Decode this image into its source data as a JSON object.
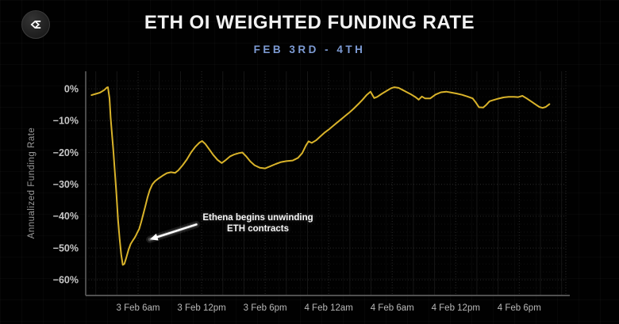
{
  "header": {
    "logo_icon": "sigma-logo-icon",
    "title": "ETH OI WEIGHTED FUNDING RATE",
    "subtitle": "FEB 3RD - 4TH"
  },
  "colors": {
    "background": "#010101",
    "title_text": "#f2f2f2",
    "subtitle_text": "#7d9bd4",
    "line": "#d9b32a",
    "axis": "#5c5c5c",
    "grid_major": "#2d2d2d",
    "grid_minor_v": "#161616",
    "grid_minor_h": "#111111",
    "y_tick_text": "#c6c6c6",
    "x_tick_text": "#b8b8b8",
    "axis_title_text": "#9b9b9b",
    "annotation_text": "#f5f5f5",
    "annotation_arrow": "#ffffff"
  },
  "chart_data": {
    "type": "line",
    "title": "ETH OI WEIGHTED FUNDING RATE",
    "subtitle": "FEB 3RD - 4TH",
    "xlabel": "",
    "ylabel": "Annualized Funding Rate",
    "y_unit": "%",
    "ylim": [
      -64.9,
      5.5
    ],
    "xlim_hours": [
      1.05,
      46.4
    ],
    "time_origin": "3 Feb 12am",
    "grid": true,
    "legend": "none",
    "y_ticks": [
      {
        "label": "0%",
        "value": 0
      },
      {
        "label": "−10%",
        "value": -10
      },
      {
        "label": "−20%",
        "value": -20
      },
      {
        "label": "−30%",
        "value": -30
      },
      {
        "label": "−40%",
        "value": -40
      },
      {
        "label": "−50%",
        "value": -50
      },
      {
        "label": "−60%",
        "value": -60
      }
    ],
    "x_ticks": [
      {
        "label": "3 Feb 6am",
        "hours": 6
      },
      {
        "label": "3 Feb 12pm",
        "hours": 12
      },
      {
        "label": "3 Feb 6pm",
        "hours": 18
      },
      {
        "label": "4 Feb 12am",
        "hours": 24
      },
      {
        "label": "4 Feb 6am",
        "hours": 30
      },
      {
        "label": "4 Feb 12pm",
        "hours": 36
      },
      {
        "label": "4 Feb 6pm",
        "hours": 42
      }
    ],
    "series": [
      {
        "name": "ETH OI weighted funding rate (annualized)",
        "unit": "%",
        "points": [
          [
            1.6,
            -2.0
          ],
          [
            2.0,
            -1.6
          ],
          [
            2.4,
            -1.2
          ],
          [
            2.8,
            -0.4
          ],
          [
            3.05,
            0.4
          ],
          [
            3.15,
            0.5
          ],
          [
            3.3,
            -3.0
          ],
          [
            3.4,
            -9.0
          ],
          [
            3.5,
            -13.0
          ],
          [
            3.65,
            -19.0
          ],
          [
            3.8,
            -26.0
          ],
          [
            3.95,
            -33.0
          ],
          [
            4.1,
            -41.0
          ],
          [
            4.25,
            -47.0
          ],
          [
            4.4,
            -52.0
          ],
          [
            4.55,
            -55.3
          ],
          [
            4.7,
            -55.0
          ],
          [
            4.9,
            -52.8
          ],
          [
            5.1,
            -50.5
          ],
          [
            5.3,
            -48.7
          ],
          [
            5.5,
            -47.6
          ],
          [
            5.65,
            -46.9
          ],
          [
            5.8,
            -46.0
          ],
          [
            5.9,
            -45.3
          ],
          [
            6.1,
            -44.0
          ],
          [
            6.3,
            -41.8
          ],
          [
            6.5,
            -39.2
          ],
          [
            6.7,
            -36.6
          ],
          [
            6.9,
            -34.0
          ],
          [
            7.1,
            -31.8
          ],
          [
            7.35,
            -30.0
          ],
          [
            7.6,
            -29.0
          ],
          [
            7.9,
            -28.2
          ],
          [
            8.3,
            -27.3
          ],
          [
            8.7,
            -26.5
          ],
          [
            9.1,
            -26.2
          ],
          [
            9.5,
            -26.4
          ],
          [
            9.8,
            -25.6
          ],
          [
            10.2,
            -24.0
          ],
          [
            10.6,
            -22.2
          ],
          [
            11.0,
            -20.0
          ],
          [
            11.4,
            -18.2
          ],
          [
            11.8,
            -16.9
          ],
          [
            12.05,
            -16.4
          ],
          [
            12.35,
            -17.3
          ],
          [
            12.7,
            -18.9
          ],
          [
            13.1,
            -20.8
          ],
          [
            13.5,
            -22.3
          ],
          [
            13.9,
            -23.3
          ],
          [
            14.3,
            -22.3
          ],
          [
            14.7,
            -21.2
          ],
          [
            15.1,
            -20.6
          ],
          [
            15.5,
            -20.2
          ],
          [
            15.85,
            -20.0
          ],
          [
            16.2,
            -21.2
          ],
          [
            16.6,
            -22.8
          ],
          [
            17.0,
            -24.0
          ],
          [
            17.5,
            -24.8
          ],
          [
            18.0,
            -25.0
          ],
          [
            18.5,
            -24.3
          ],
          [
            19.0,
            -23.6
          ],
          [
            19.5,
            -23.0
          ],
          [
            20.0,
            -22.7
          ],
          [
            20.6,
            -22.5
          ],
          [
            21.1,
            -21.7
          ],
          [
            21.5,
            -20.2
          ],
          [
            21.85,
            -17.8
          ],
          [
            22.1,
            -16.5
          ],
          [
            22.4,
            -17.0
          ],
          [
            22.8,
            -16.2
          ],
          [
            23.2,
            -15.0
          ],
          [
            23.6,
            -13.8
          ],
          [
            24.0,
            -12.8
          ],
          [
            24.4,
            -11.7
          ],
          [
            24.8,
            -10.6
          ],
          [
            25.2,
            -9.5
          ],
          [
            25.6,
            -8.4
          ],
          [
            26.0,
            -7.3
          ],
          [
            26.4,
            -6.1
          ],
          [
            26.8,
            -4.8
          ],
          [
            27.2,
            -3.4
          ],
          [
            27.6,
            -1.9
          ],
          [
            27.95,
            -0.9
          ],
          [
            28.3,
            -2.9
          ],
          [
            28.6,
            -2.5
          ],
          [
            29.0,
            -1.6
          ],
          [
            29.5,
            -0.6
          ],
          [
            29.9,
            0.2
          ],
          [
            30.2,
            0.5
          ],
          [
            30.6,
            0.3
          ],
          [
            31.0,
            -0.4
          ],
          [
            31.4,
            -1.1
          ],
          [
            31.8,
            -1.8
          ],
          [
            32.2,
            -2.6
          ],
          [
            32.5,
            -3.4
          ],
          [
            32.8,
            -2.4
          ],
          [
            33.1,
            -3.0
          ],
          [
            33.6,
            -3.0
          ],
          [
            34.1,
            -1.8
          ],
          [
            34.6,
            -1.1
          ],
          [
            35.1,
            -0.9
          ],
          [
            35.6,
            -1.2
          ],
          [
            36.1,
            -1.5
          ],
          [
            36.6,
            -1.9
          ],
          [
            37.1,
            -2.4
          ],
          [
            37.6,
            -3.0
          ],
          [
            37.9,
            -4.3
          ],
          [
            38.2,
            -5.8
          ],
          [
            38.6,
            -5.9
          ],
          [
            38.9,
            -5.0
          ],
          [
            39.2,
            -3.9
          ],
          [
            39.5,
            -3.6
          ],
          [
            40.0,
            -3.1
          ],
          [
            40.5,
            -2.7
          ],
          [
            41.0,
            -2.5
          ],
          [
            41.5,
            -2.5
          ],
          [
            41.9,
            -2.6
          ],
          [
            42.3,
            -2.2
          ],
          [
            42.7,
            -3.0
          ],
          [
            43.1,
            -3.9
          ],
          [
            43.5,
            -4.8
          ],
          [
            43.9,
            -5.7
          ],
          [
            44.2,
            -6.0
          ],
          [
            44.5,
            -5.7
          ],
          [
            44.85,
            -4.8
          ]
        ]
      }
    ],
    "annotation": {
      "line1": "Ethena begins unwinding",
      "line2": "ETH contracts",
      "arrow_from": [
        11.5,
        -42.6
      ],
      "arrow_to": [
        7.1,
        -47.3
      ]
    }
  }
}
